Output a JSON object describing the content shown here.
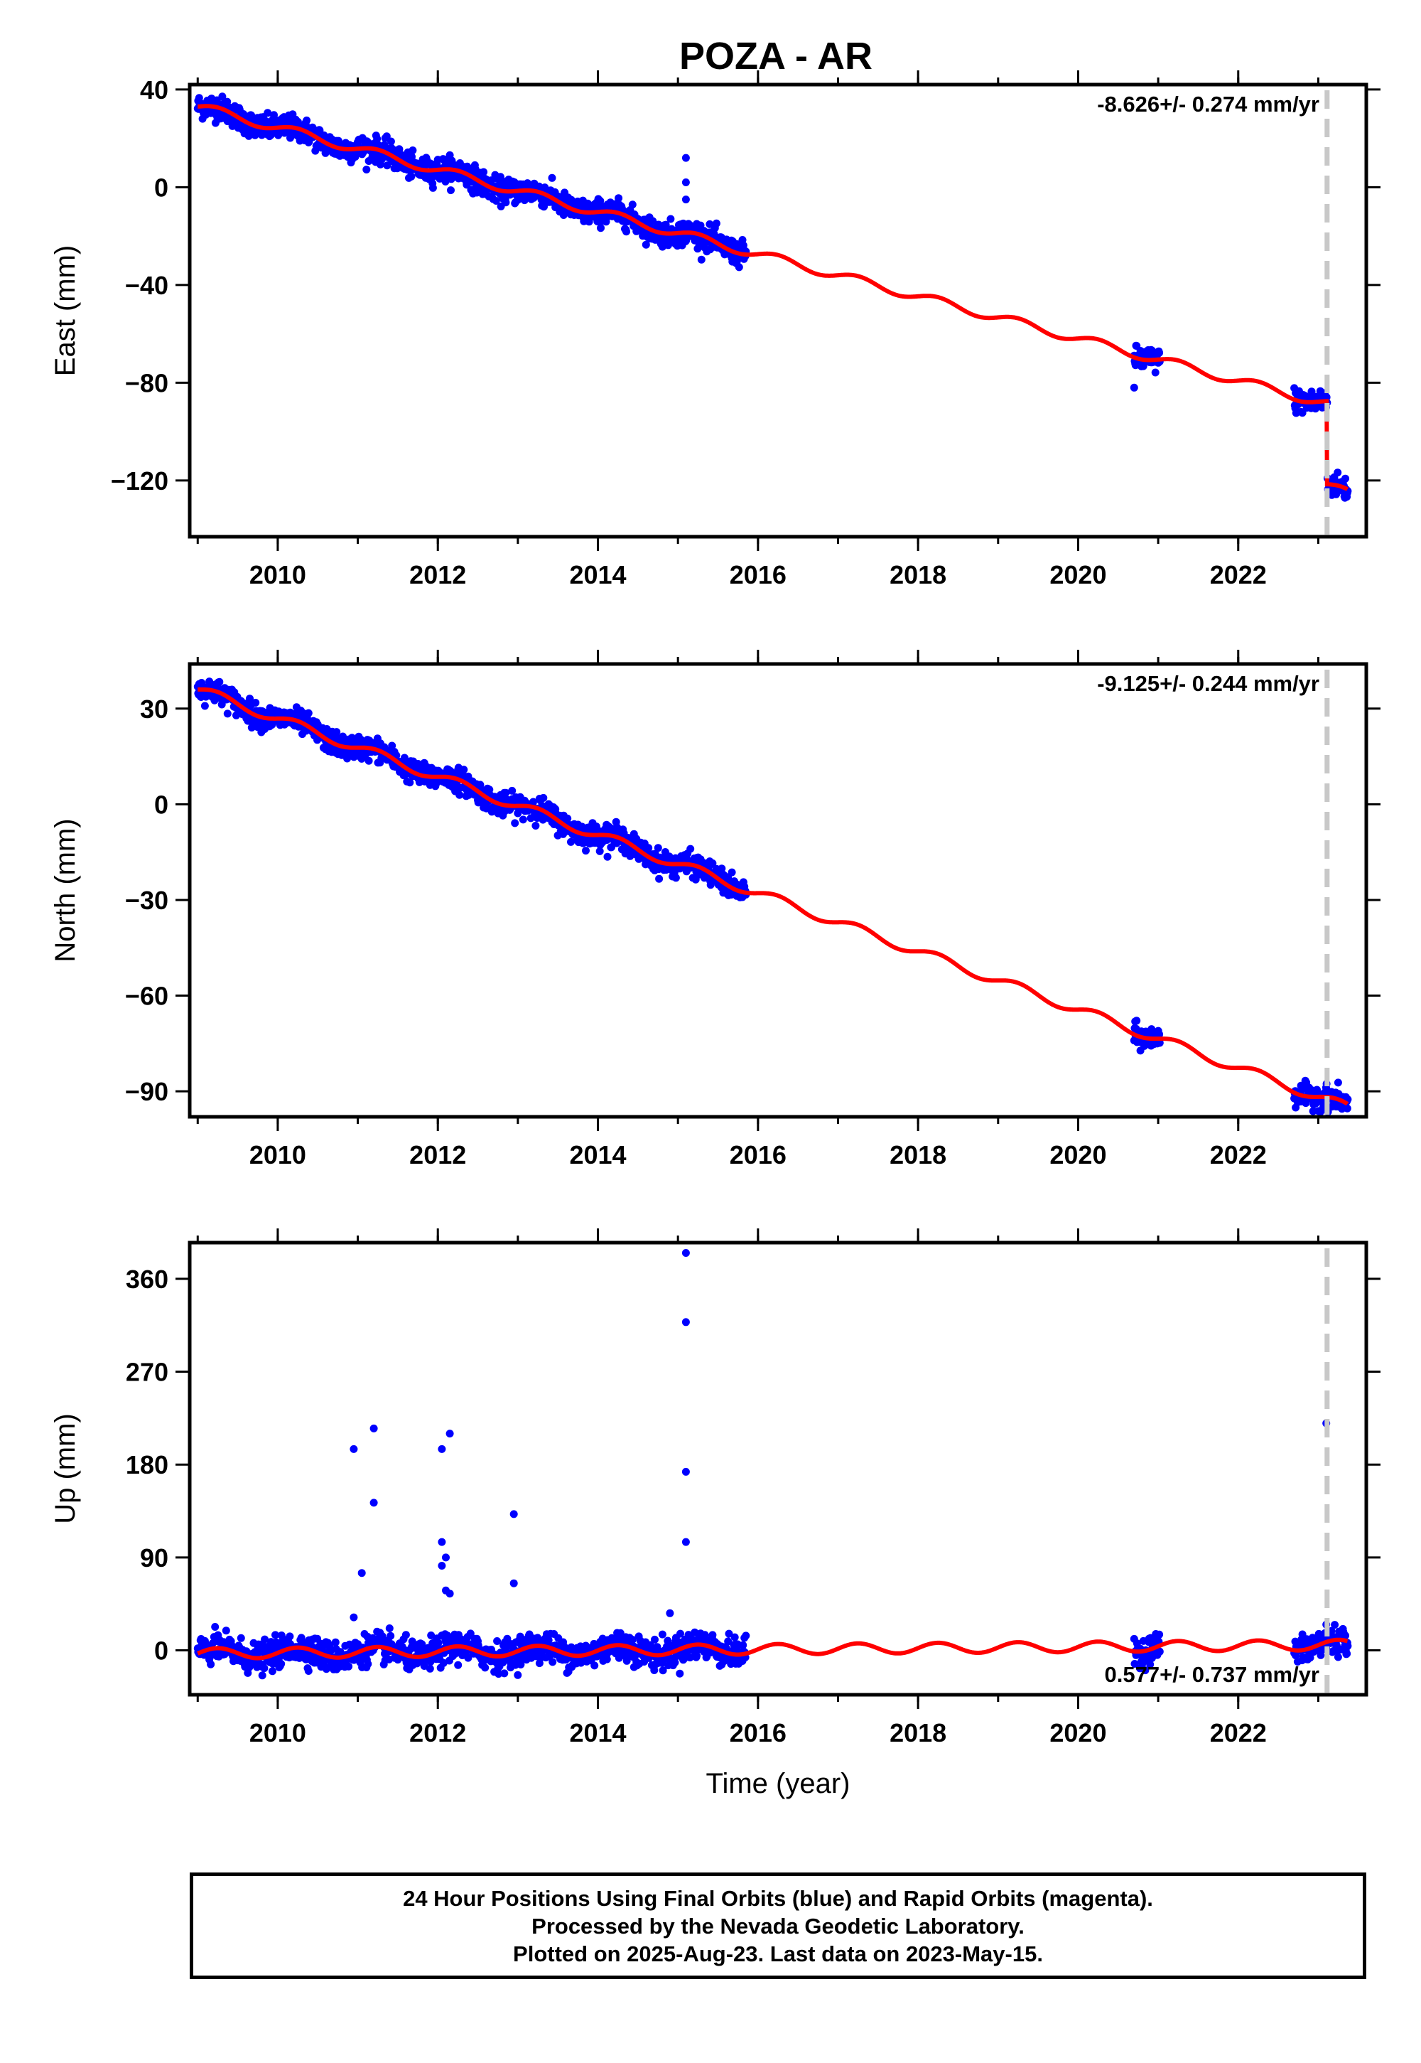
{
  "title": "POZA - AR",
  "colors": {
    "data": "#0000ff",
    "model": "#ff0000",
    "event": "#c8c8c8"
  },
  "chart_data": [
    {
      "type": "scatter",
      "component": "east",
      "ylabel": "East (mm)",
      "xlim": [
        2008.9,
        2023.6
      ],
      "ylim": [
        -143,
        42
      ],
      "xticks": [
        2010,
        2012,
        2014,
        2016,
        2018,
        2020,
        2022
      ],
      "yticks": [
        40,
        0,
        -40,
        -80,
        -120
      ],
      "ytick_labels": [
        "40",
        "0",
        "−40",
        "−80",
        "−120"
      ],
      "rate_label": "-8.626+/- 0.274 mm/yr",
      "rate_position": "top-right",
      "event_line_year": 2023.11,
      "data_segments": [
        [
          2009.0,
          2015.85
        ],
        [
          2020.7,
          2021.02
        ],
        [
          2022.7,
          2023.37
        ]
      ],
      "trend": {
        "rate": -8.626,
        "y0": 33.0
      },
      "seasonal": {
        "amp": 1.8
      },
      "offset": {
        "year": 2023.11,
        "size": -34
      },
      "noise": 2.5,
      "outliers": [
        [
          2015.1,
          12
        ],
        [
          2015.1,
          2
        ],
        [
          2015.1,
          -5
        ],
        [
          2020.7,
          -82
        ]
      ]
    },
    {
      "type": "scatter",
      "component": "north",
      "ylabel": "North (mm)",
      "xlim": [
        2008.9,
        2023.6
      ],
      "ylim": [
        -98,
        44
      ],
      "xticks": [
        2010,
        2012,
        2014,
        2016,
        2018,
        2020,
        2022
      ],
      "yticks": [
        30,
        0,
        -30,
        -60,
        -90
      ],
      "ytick_labels": [
        "30",
        "0",
        "−30",
        "−60",
        "−90"
      ],
      "rate_label": "-9.125+/- 0.244 mm/yr",
      "rate_position": "top-right",
      "event_line_year": 2023.11,
      "data_segments": [
        [
          2009.0,
          2015.85
        ],
        [
          2020.7,
          2021.02
        ],
        [
          2022.7,
          2023.37
        ]
      ],
      "trend": {
        "rate": -9.125,
        "y0": 36.0
      },
      "seasonal": {
        "amp": 1.5
      },
      "offset": {
        "year": 2023.11,
        "size": 0
      },
      "noise": 1.8,
      "outliers": []
    },
    {
      "type": "scatter",
      "component": "up",
      "ylabel": "Up (mm)",
      "xlabel": "Time (year)",
      "xlim": [
        2008.9,
        2023.6
      ],
      "ylim": [
        -43,
        395
      ],
      "xticks": [
        2010,
        2012,
        2014,
        2016,
        2018,
        2020,
        2022
      ],
      "yticks": [
        360,
        270,
        180,
        90,
        0
      ],
      "ytick_labels": [
        "360",
        "270",
        "180",
        "90",
        "0"
      ],
      "rate_label": "0.577+/- 0.737 mm/yr",
      "rate_position": "bottom-right",
      "event_line_year": 2023.11,
      "data_segments": [
        [
          2009.0,
          2015.85
        ],
        [
          2020.7,
          2021.02
        ],
        [
          2022.7,
          2023.37
        ]
      ],
      "trend": {
        "rate": 0.577,
        "y0": -3.0
      },
      "seasonal": {
        "amp": 5
      },
      "offset": {
        "year": 2023.11,
        "size": 0
      },
      "noise": 7,
      "outliers": [
        [
          2010.95,
          195
        ],
        [
          2011.2,
          215
        ],
        [
          2011.2,
          143
        ],
        [
          2011.05,
          75
        ],
        [
          2010.95,
          32
        ],
        [
          2012.05,
          195
        ],
        [
          2012.15,
          210
        ],
        [
          2012.05,
          105
        ],
        [
          2012.1,
          90
        ],
        [
          2012.1,
          58
        ],
        [
          2012.15,
          55
        ],
        [
          2012.05,
          82
        ],
        [
          2012.95,
          132
        ],
        [
          2012.95,
          65
        ],
        [
          2015.1,
          385
        ],
        [
          2015.1,
          318
        ],
        [
          2015.1,
          173
        ],
        [
          2015.1,
          105
        ],
        [
          2014.9,
          36
        ],
        [
          2023.1,
          220
        ],
        [
          2023.1,
          25
        ]
      ]
    }
  ],
  "footer": {
    "line1": "24 Hour Positions Using Final Orbits (blue) and Rapid Orbits (magenta).",
    "line2": "Processed by the Nevada Geodetic Laboratory.",
    "line3": "Plotted on 2025-Aug-23. Last data on 2023-May-15."
  }
}
